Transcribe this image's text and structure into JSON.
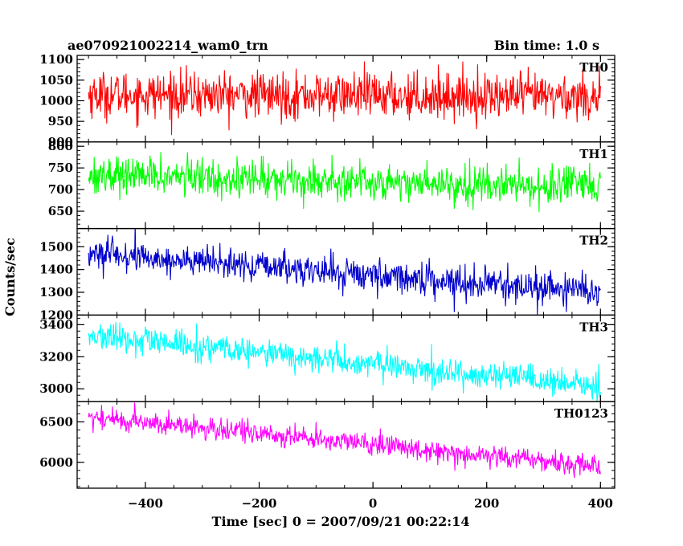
{
  "header": {
    "title": "ae070921002214_wam0_trn",
    "bin_time": "Bin time: 1.0 s"
  },
  "axes": {
    "xlabel": "Time [sec] 0 = 2007/09/21 00:22:14",
    "ylabel": "Counts/sec"
  },
  "colors": {
    "TH0": "#ff0000",
    "TH1": "#00ff00",
    "TH2": "#0000cc",
    "TH3": "#00ffff",
    "TH0123": "#ff00ff",
    "frame": "#000000"
  },
  "chart_data": {
    "type": "line",
    "x_range": [
      -500,
      400
    ],
    "xlim": [
      -520,
      425
    ],
    "x_ticks": [
      -400,
      -200,
      0,
      200,
      400
    ],
    "x_tick_labels": [
      "−400",
      "−200",
      "0",
      "200",
      "400"
    ],
    "x_step": 1.0,
    "panels": [
      {
        "name": "TH0",
        "color": "#ff0000",
        "ylim": [
          900,
          1110
        ],
        "y_ticks": [
          900,
          950,
          1000,
          1050,
          1100
        ],
        "y_tick_labels": [
          "900",
          "950",
          "1000",
          "1050",
          "1100"
        ],
        "trend_start": 1015,
        "trend_end": 1010,
        "noise_amp": 45
      },
      {
        "name": "TH1",
        "color": "#00ff00",
        "ylim": [
          610,
          810
        ],
        "y_ticks": [
          650,
          700,
          750,
          800
        ],
        "y_tick_labels": [
          "650",
          "700",
          "750",
          "800"
        ],
        "trend_start": 735,
        "trend_end": 705,
        "noise_amp": 35
      },
      {
        "name": "TH2",
        "color": "#0000cc",
        "ylim": [
          1200,
          1580
        ],
        "y_ticks": [
          1200,
          1300,
          1400,
          1500
        ],
        "y_tick_labels": [
          "1200",
          "1300",
          "1400",
          "1500"
        ],
        "trend_start": 1470,
        "trend_end": 1300,
        "noise_amp": 55
      },
      {
        "name": "TH3",
        "color": "#00ffff",
        "ylim": [
          2920,
          3460
        ],
        "y_ticks": [
          3000,
          3200,
          3400
        ],
        "y_tick_labels": [
          "3000",
          "3200",
          "3400"
        ],
        "trend_start": 3330,
        "trend_end": 3010,
        "noise_amp": 70
      },
      {
        "name": "TH0123",
        "color": "#ff00ff",
        "ylim": [
          5680,
          6750
        ],
        "y_ticks": [
          6000,
          6500
        ],
        "y_tick_labels": [
          "6000",
          "6500"
        ],
        "trend_start": 6560,
        "trend_end": 5950,
        "noise_amp": 110
      }
    ]
  }
}
